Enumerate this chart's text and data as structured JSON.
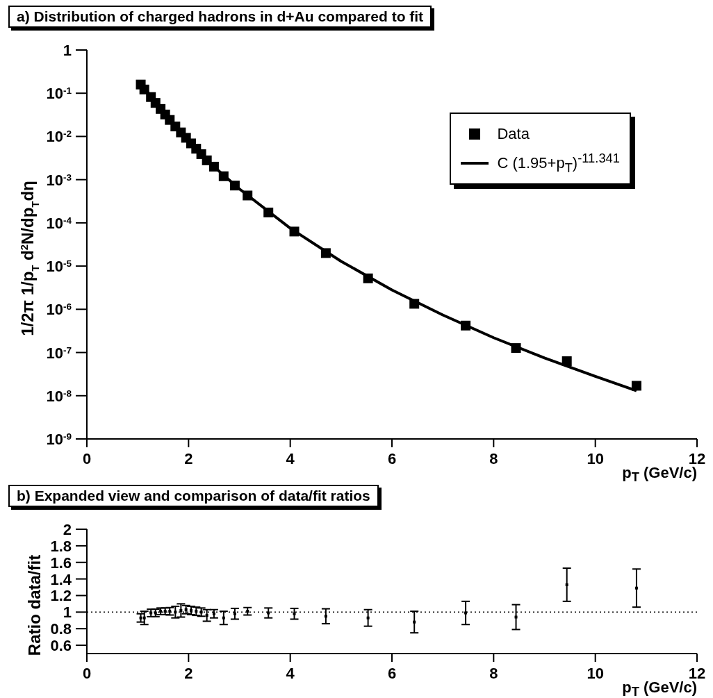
{
  "chart_data": [
    {
      "type": "scatter",
      "title": "a) Distribution of charged hadrons in d+Au compared to fit",
      "xlabel": "p$_{T}$ (GeV/c)",
      "ylabel": "1/2π 1/p$_{T}$ d$^{2}$N/dp$_{T}$dη",
      "log": "y",
      "legend": "top right",
      "xlim": [
        0,
        12
      ],
      "xticks": [
        0,
        2,
        4,
        6,
        8,
        10,
        12
      ],
      "ylim": [
        1e-09,
        1
      ],
      "yticks": [
        {
          "value": 1e-09,
          "label": "10$^{-9}$"
        },
        {
          "value": 1e-08,
          "label": "10$^{-8}$"
        },
        {
          "value": 1e-07,
          "label": "10$^{-7}$"
        },
        {
          "value": 1e-06,
          "label": "10$^{-6}$"
        },
        {
          "value": 1e-05,
          "label": "10$^{-5}$"
        },
        {
          "value": 0.0001,
          "label": "10$^{-4}$"
        },
        {
          "value": 0.001,
          "label": "10$^{-3}$"
        },
        {
          "value": 0.01,
          "label": "10$^{-2}$"
        },
        {
          "value": 0.1,
          "label": "10$^{-1}$"
        },
        1
      ],
      "series": [
        {
          "name": "Data",
          "type": "scatter",
          "marker": "square",
          "color": "#000000",
          "x": [
            1.06,
            1.13,
            1.26,
            1.35,
            1.45,
            1.54,
            1.63,
            1.74,
            1.85,
            1.95,
            2.05,
            2.15,
            2.25,
            2.36,
            2.5,
            2.69,
            2.91,
            3.16,
            3.57,
            4.08,
            4.7,
            5.53,
            6.44,
            7.45,
            8.44,
            9.44,
            10.81
          ],
          "values": [
            0.159,
            0.122,
            0.0816,
            0.0597,
            0.0433,
            0.0322,
            0.0241,
            0.017,
            0.0124,
            0.0093,
            0.0069,
            0.0052,
            0.0039,
            0.0028,
            0.002,
            0.0012,
            0.00073,
            0.00043,
            0.000174,
            6.3e-05,
            2e-05,
            5.2e-06,
            1.34e-06,
            4.2e-07,
            1.27e-07,
            6.3e-08,
            1.7e-08
          ]
        },
        {
          "name": "C (1.95+p$_{T}$)$^{-11.341}$",
          "type": "line",
          "marker": "none",
          "line_style": "solid",
          "color": "#000000",
          "x": [
            1.06,
            1.5,
            2,
            2.5,
            3,
            4,
            5,
            6,
            7,
            8,
            9,
            10,
            10.81
          ],
          "values": [
            0.171,
            0.0364,
            0.0078,
            0.002,
            0.00061,
            7.5e-05,
            1.29e-05,
            2.8e-06,
            7.4e-07,
            2.2e-07,
            7.5e-08,
            2.8e-08,
            1.3e-08
          ]
        }
      ]
    },
    {
      "type": "scatter",
      "title": "b) Expanded view and comparison of data/fit ratios",
      "xlabel": "p$_{T}$ (GeV/c)",
      "ylabel": "Ratio data/fit",
      "xlim": [
        0,
        12
      ],
      "xticks": [
        0,
        2,
        4,
        6,
        8,
        10,
        12
      ],
      "ylim": [
        0.5,
        2
      ],
      "yticks": [
        0.6,
        0.8,
        1,
        1.2,
        1.4,
        1.6,
        1.8,
        2
      ],
      "x": [
        1.06,
        1.13,
        1.26,
        1.35,
        1.45,
        1.54,
        1.63,
        1.74,
        1.85,
        1.95,
        2.05,
        2.15,
        2.25,
        2.36,
        2.5,
        2.69,
        2.91,
        3.16,
        3.57,
        4.08,
        4.7,
        5.53,
        6.44,
        7.45,
        8.44,
        9.44,
        10.81
      ],
      "values": [
        0.93,
        0.93,
        0.99,
        0.99,
        1.01,
        1.01,
        1.01,
        1.0,
        1.02,
        1.03,
        1.02,
        1.01,
        1.0,
        0.96,
        0.98,
        0.93,
        0.98,
        1.01,
        0.99,
        0.98,
        0.95,
        0.93,
        0.88,
        0.99,
        0.94,
        1.33,
        1.29
      ],
      "errors": [
        0.05,
        0.08,
        0.045,
        0.045,
        0.04,
        0.04,
        0.045,
        0.07,
        0.08,
        0.05,
        0.05,
        0.05,
        0.05,
        0.07,
        0.05,
        0.08,
        0.065,
        0.045,
        0.06,
        0.065,
        0.09,
        0.1,
        0.13,
        0.14,
        0.15,
        0.2,
        0.23
      ],
      "ref_lines": [
        {
          "axis": "y",
          "value": 1,
          "line_style": "dotted",
          "color": "#000000"
        }
      ]
    }
  ]
}
